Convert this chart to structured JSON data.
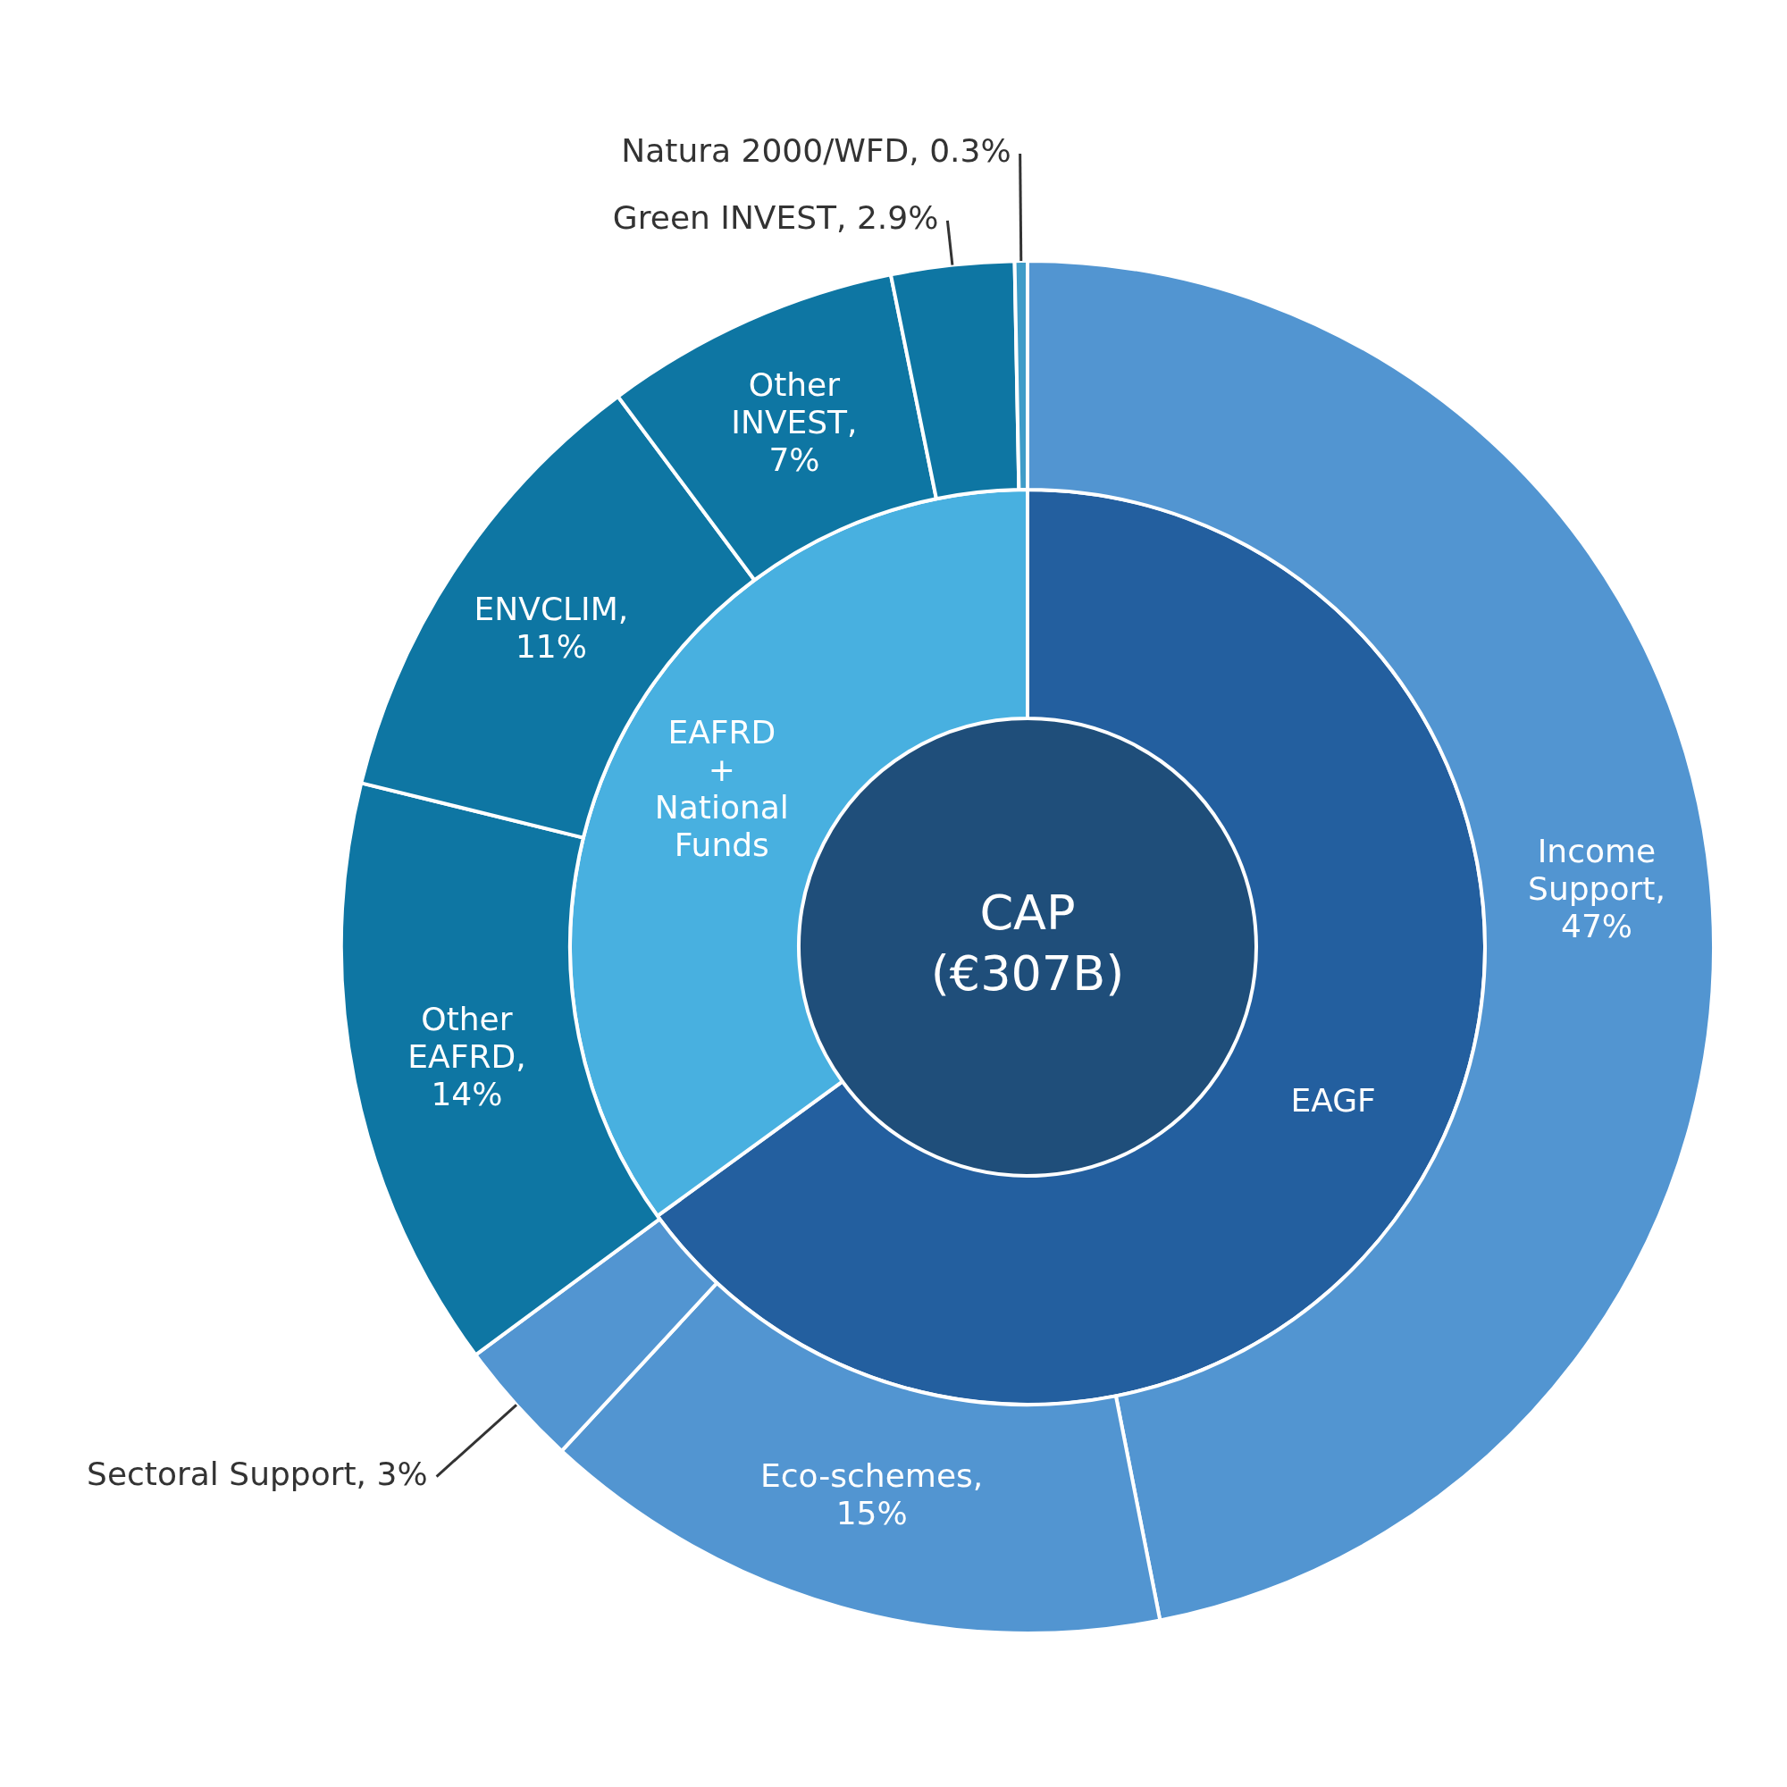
{
  "chart_data": {
    "type": "donut",
    "legend": false,
    "series": [
      {
        "name": "CAP (€307B)",
        "values": [
          100
        ],
        "colors": [
          "#1f4e7a"
        ]
      },
      {
        "values": [
          65,
          35
        ],
        "colors": [
          "#235f9f",
          "#48b0e0"
        ],
        "value_labels": [
          "EAGF",
          "EAFRD + National Funds"
        ]
      },
      {
        "values": [
          47,
          15,
          3,
          14,
          11,
          7,
          2.9,
          0.3
        ],
        "colors": [
          "#5295d1",
          "#5295d1",
          "#5295d1",
          "#0e76a3",
          "#0e76a3",
          "#0e76a3",
          "#0e76a3",
          "#3f9cc8"
        ],
        "value_labels": [
          "Income Support, 47%",
          "Eco-schemes, 15%",
          "Sectoral Support, 3%",
          "Other EAFRD, 14%",
          "ENVCLIM, 11%",
          "Other INVEST, 7%",
          "Green INVEST, 2.9%",
          "Natura 2000/WFD, 0.3%"
        ]
      }
    ]
  }
}
